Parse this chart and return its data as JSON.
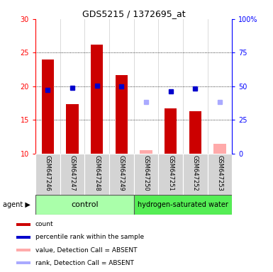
{
  "title": "GDS5215 / 1372695_at",
  "samples": [
    "GSM647246",
    "GSM647247",
    "GSM647248",
    "GSM647249",
    "GSM647250",
    "GSM647251",
    "GSM647252",
    "GSM647253"
  ],
  "count_values": [
    24.0,
    17.4,
    26.2,
    21.7,
    null,
    16.7,
    16.3,
    null
  ],
  "rank_values": [
    19.5,
    19.8,
    20.1,
    20.0,
    null,
    19.3,
    19.7,
    null
  ],
  "count_absent": [
    null,
    null,
    null,
    null,
    10.5,
    null,
    null,
    11.5
  ],
  "rank_absent": [
    null,
    null,
    null,
    null,
    17.7,
    null,
    null,
    17.7
  ],
  "ylim_left": [
    10,
    30
  ],
  "yticks_left": [
    10,
    15,
    20,
    25,
    30
  ],
  "yticks_right": [
    0,
    25,
    50,
    75,
    100
  ],
  "bar_color": "#cc0000",
  "rank_color": "#0000cc",
  "absent_value_color": "#ffaaaa",
  "absent_rank_color": "#aaaaff",
  "bar_width": 0.5,
  "marker_size": 5,
  "background_color": "#ffffff",
  "plot_bg_color": "#ffffff",
  "ctrl_color": "#aaffaa",
  "h2_color": "#55ee55",
  "legend_items": [
    {
      "label": "count",
      "color": "#cc0000"
    },
    {
      "label": "percentile rank within the sample",
      "color": "#0000cc"
    },
    {
      "label": "value, Detection Call = ABSENT",
      "color": "#ffaaaa"
    },
    {
      "label": "rank, Detection Call = ABSENT",
      "color": "#aaaaff"
    }
  ]
}
